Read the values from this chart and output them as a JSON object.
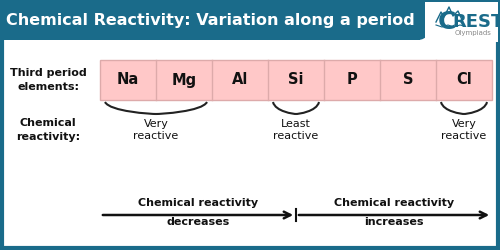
{
  "title": "Chemical Reactivity: Variation along a period",
  "title_bg_color": "#1a6b8a",
  "title_text_color": "#ffffff",
  "bg_color": "#ffffff",
  "border_color": "#1a6b8a",
  "elements": [
    "Na",
    "Mg",
    "Al",
    "Si",
    "P",
    "S",
    "Cl"
  ],
  "element_box_color": "#ffc8c8",
  "element_box_border": "#ddaaaa",
  "left_label": "Third period\nelements:",
  "chem_label": "Chemical\nreactivity:",
  "arrow_left_label1": "Chemical reactivity",
  "arrow_left_label2": "decreases",
  "arrow_right_label1": "Chemical reactivity",
  "arrow_right_label2": "increases",
  "arrow_color": "#111111",
  "text_color": "#111111"
}
